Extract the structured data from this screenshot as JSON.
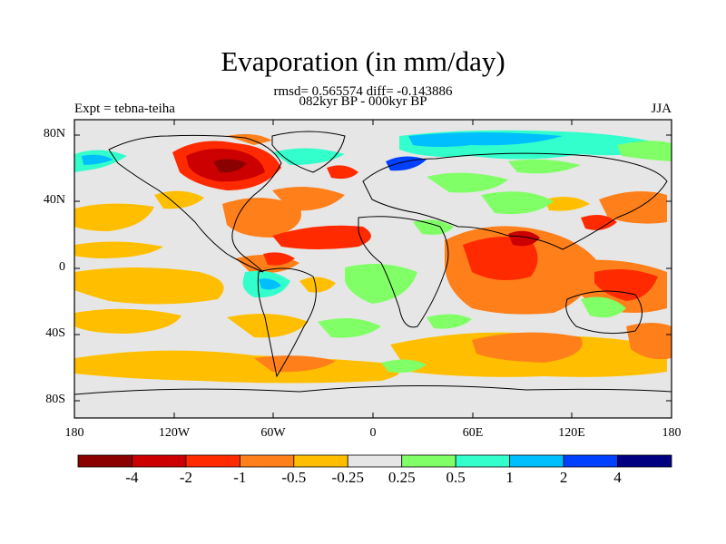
{
  "title": "Evaporation (in mm/day)",
  "stats_line": "rmsd= 0.565574 diff= -0.143886",
  "period_line": "082kyr BP - 000kyr BP",
  "experiment": "Expt = tebna-teiha",
  "season": "JJA",
  "lat_labels": [
    "80N",
    "40N",
    "0",
    "40S",
    "80S"
  ],
  "lon_labels": [
    "180",
    "120W",
    "60W",
    "0",
    "60E",
    "120E",
    "180"
  ],
  "colorbar": {
    "labels": [
      "-4",
      "-2",
      "-1",
      "-0.5",
      "-0.25",
      "0.25",
      "0.5",
      "1",
      "2",
      "4"
    ],
    "colors": [
      "#8b0000",
      "#cc0000",
      "#ff2a00",
      "#ff7f1a",
      "#ffbf00",
      "#e6e6e6",
      "#80ff66",
      "#33ffcc",
      "#00bfff",
      "#0040ff",
      "#000080"
    ]
  }
}
